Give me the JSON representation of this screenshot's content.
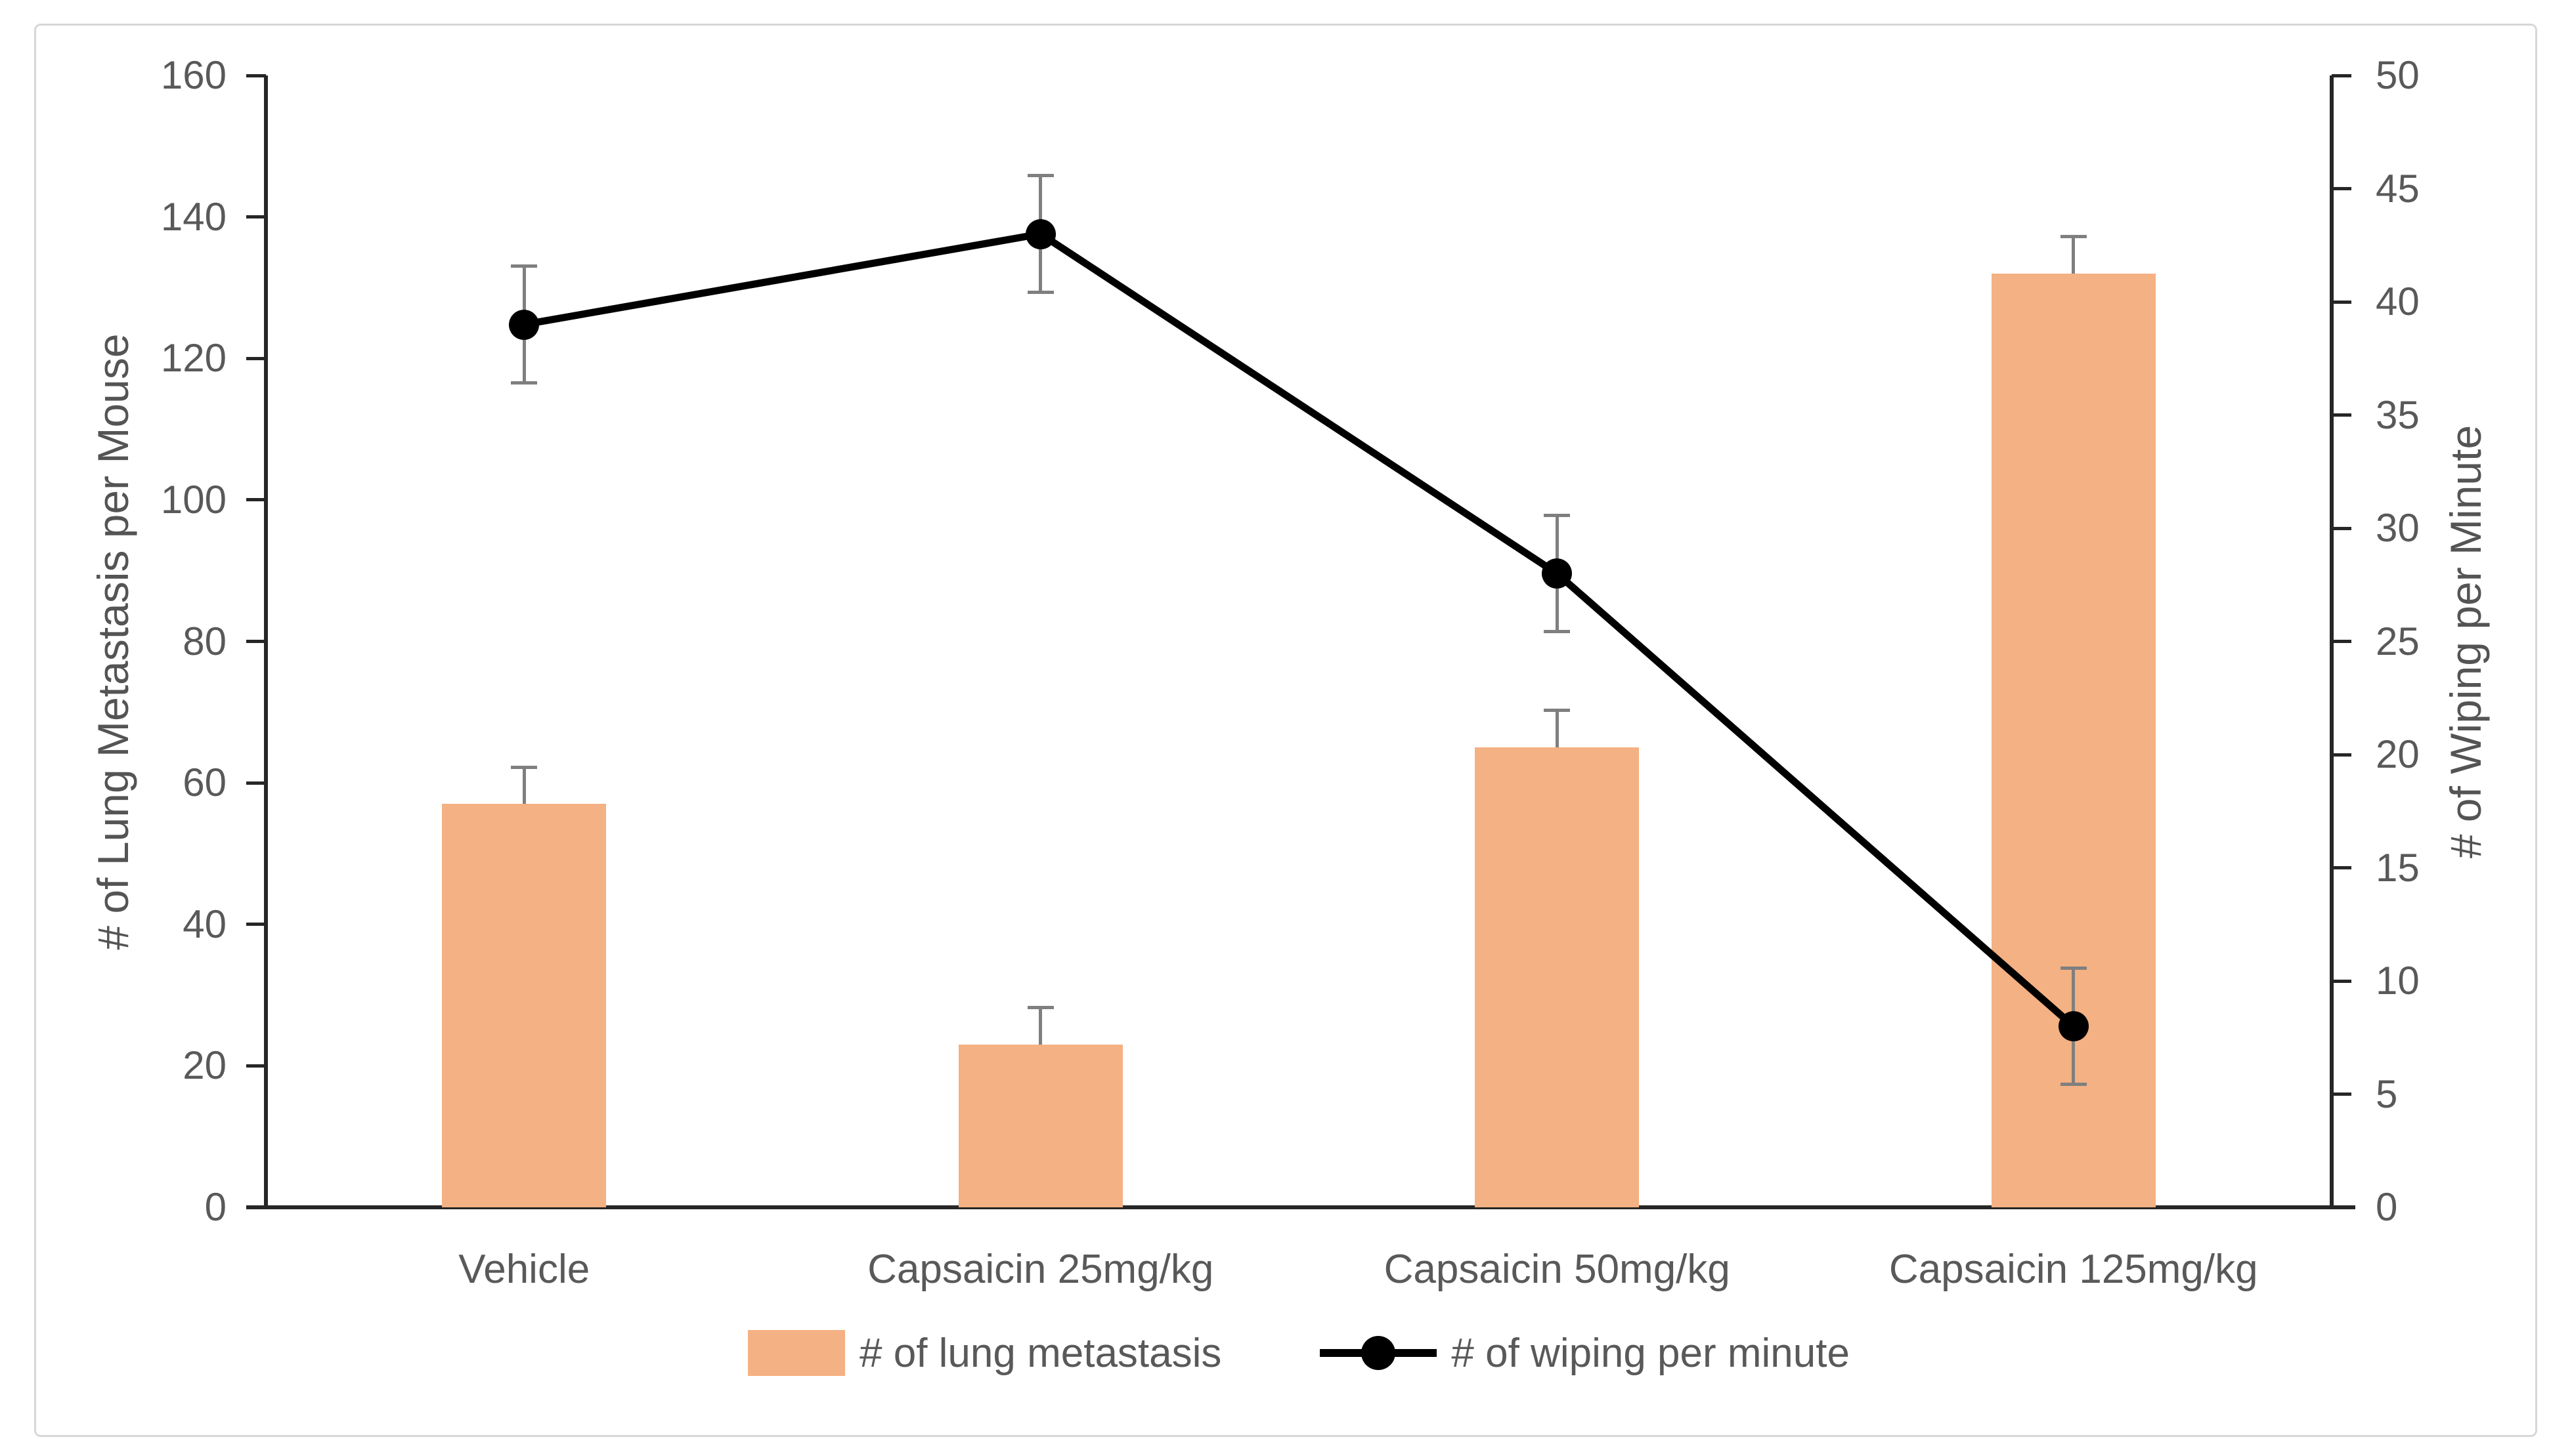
{
  "chart_data": {
    "type": "combo-bar-line",
    "title": "",
    "categories": [
      "Vehicle",
      "Capsaicin 25mg/kg",
      "Capsaicin 50mg/kg",
      "Capsaicin 125mg/kg"
    ],
    "series": [
      {
        "name": "# of lung metastasis",
        "type": "bar",
        "axis": "left",
        "values": [
          57,
          23,
          65,
          132
        ],
        "error_plus": [
          5,
          5,
          5,
          5
        ],
        "color": "#F4B183"
      },
      {
        "name": "# of wiping per minute",
        "type": "line",
        "axis": "right",
        "values": [
          39,
          43,
          28,
          8
        ],
        "error": [
          2.5,
          2.5,
          2.5,
          2.5
        ],
        "color": "#000000",
        "marker": "circle"
      }
    ],
    "left_axis": {
      "label": "# of Lung Metastasis per Mouse",
      "min": 0,
      "max": 160,
      "step": 20,
      "ticks": [
        0,
        20,
        40,
        60,
        80,
        100,
        120,
        140,
        160
      ]
    },
    "right_axis": {
      "label": "# of Wiping per Minute",
      "min": 0,
      "max": 50,
      "step": 5,
      "ticks": [
        0,
        5,
        10,
        15,
        20,
        25,
        30,
        35,
        40,
        45,
        50
      ]
    },
    "grid": false,
    "legend_position": "bottom"
  },
  "colors": {
    "bar_fill": "#F4B183",
    "line_stroke": "#000000",
    "error_bar": "#7f7f7f",
    "axis_line": "#262626",
    "tick_text": "#595959",
    "frame_border": "#d7d7d7",
    "background": "#ffffff"
  },
  "legend": {
    "items": [
      {
        "label": "# of lung metastasis",
        "swatch": "bar-swatch-orange"
      },
      {
        "label": "# of wiping per minute",
        "swatch": "line-dot-marker"
      }
    ]
  }
}
